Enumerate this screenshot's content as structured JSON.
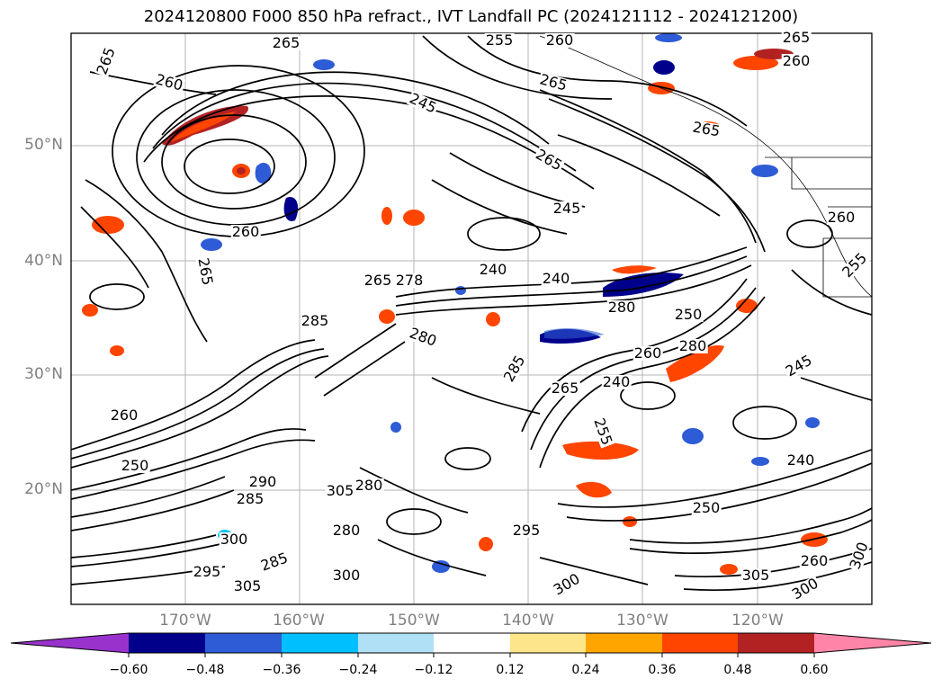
{
  "title": "2024120800 F000 850 hPa refract., IVT Landfall PC (2024121112 - 2024121200)",
  "axes": {
    "lat_labels": [
      "50°N",
      "40°N",
      "30°N",
      "20°N"
    ],
    "lon_labels": [
      "170°W",
      "160°W",
      "150°W",
      "140°W",
      "130°W",
      "120°W"
    ],
    "grid": true,
    "lat_range": [
      "10°N",
      "60°N"
    ],
    "lon_range": [
      "180°",
      "110°W"
    ]
  },
  "contour_labels": [
    "265",
    "265",
    "255",
    "260",
    "265",
    "260",
    "260",
    "245",
    "265",
    "265",
    "265",
    "245",
    "260",
    "265",
    "240",
    "240",
    "265",
    "278",
    "285",
    "280",
    "280",
    "250",
    "280",
    "285",
    "260",
    "265",
    "245",
    "255",
    "260",
    "240",
    "240",
    "250",
    "250",
    "295",
    "300",
    "300",
    "285",
    "280",
    "305",
    "300",
    "305",
    "280",
    "285",
    "290",
    "255",
    "300",
    "295",
    "305",
    "300",
    "260",
    "260"
  ],
  "colorbar": {
    "ticks": [
      "−0.60",
      "−0.48",
      "−0.36",
      "−0.24",
      "−0.12",
      "0.12",
      "0.24",
      "0.36",
      "0.48",
      "0.60"
    ],
    "colors": [
      "#9932cc",
      "#8a2be2",
      "#00008b",
      "#2e5bd6",
      "#00bfff",
      "#b0e0f6",
      "#ffffff",
      "#fde68a",
      "#ffa500",
      "#ff4500",
      "#b22222",
      "#ff85a8"
    ]
  }
}
